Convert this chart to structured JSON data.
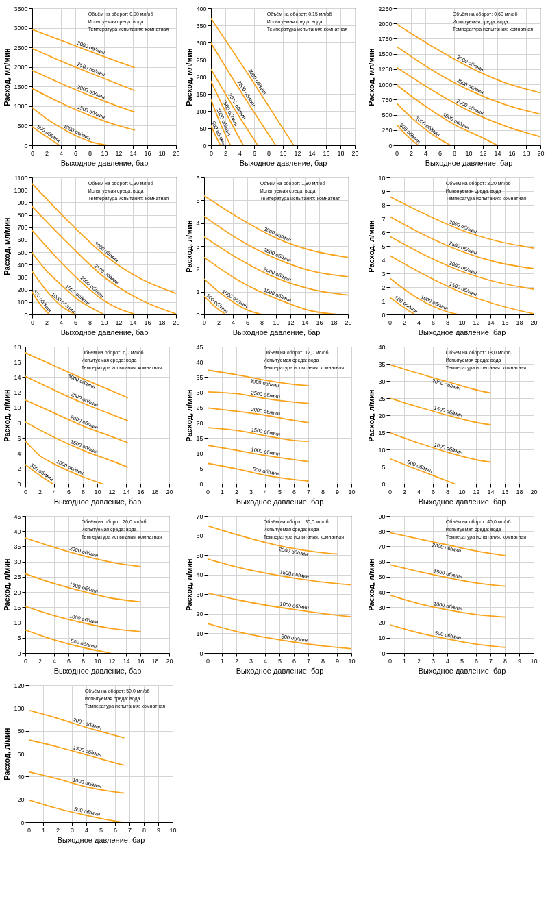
{
  "chart_data": [
    {
      "type": "line",
      "xlabel": "Выходное давление, бар",
      "ylabel": "Расход, мл/мин",
      "xlim": [
        0,
        20
      ],
      "xticks": [
        0,
        2,
        4,
        6,
        8,
        10,
        12,
        14,
        16,
        18,
        20
      ],
      "ylim": [
        0,
        3500
      ],
      "yticks": [
        0,
        500,
        1000,
        1500,
        2000,
        2500,
        3000,
        3500
      ],
      "grid": true,
      "annotations": [
        "Объём на оборот: 0,90 мл/об",
        "Испытуемая среда: вода",
        "Температура испытания: комнатная"
      ],
      "series": [
        {
          "name": "3000 об/мин",
          "color": "#f9a31b",
          "x": [
            0,
            4,
            8,
            12,
            14.2
          ],
          "values": [
            2960,
            2680,
            2400,
            2130,
            1990
          ]
        },
        {
          "name": "2500 об/мин",
          "color": "#f9a31b",
          "x": [
            0,
            4,
            8,
            12,
            14.2
          ],
          "values": [
            2470,
            2150,
            1850,
            1560,
            1400
          ]
        },
        {
          "name": "2000 об/мин",
          "color": "#f9a31b",
          "x": [
            0,
            4,
            8,
            12,
            14.2
          ],
          "values": [
            1910,
            1580,
            1270,
            990,
            850
          ]
        },
        {
          "name": "1500 об/мин",
          "color": "#f9a31b",
          "x": [
            0,
            4,
            8,
            12,
            14.2
          ],
          "values": [
            1450,
            1080,
            760,
            500,
            390
          ]
        },
        {
          "name": "1000 об/мин",
          "color": "#f9a31b",
          "x": [
            0,
            2,
            4,
            6,
            8,
            10.5
          ],
          "values": [
            960,
            680,
            450,
            250,
            100,
            0
          ]
        },
        {
          "name": "500 об/мин",
          "color": "#f9a31b",
          "x": [
            0,
            2,
            3.8
          ],
          "values": [
            470,
            220,
            0
          ]
        }
      ]
    },
    {
      "type": "line",
      "xlabel": "Выходное давление, бар",
      "ylabel": "Расход, мл/мин",
      "xlim": [
        0,
        20
      ],
      "xticks": [
        0,
        2,
        4,
        6,
        8,
        10,
        12,
        14,
        16,
        18,
        20
      ],
      "ylim": [
        0,
        400
      ],
      "yticks": [
        0,
        50,
        100,
        150,
        200,
        250,
        300,
        350,
        400
      ],
      "grid": true,
      "annotations": [
        "Объём на оборот: 0,15 мл/об",
        "Испытуемая среда: вода",
        "Температура испытания: комнатная"
      ],
      "series": [
        {
          "name": "3000 об/мин",
          "color": "#f9a31b",
          "x": [
            0,
            6,
            11.5
          ],
          "values": [
            370,
            180,
            0
          ]
        },
        {
          "name": "2500 об/мин",
          "color": "#f9a31b",
          "x": [
            0,
            4.5,
            9
          ],
          "values": [
            298,
            145,
            0
          ]
        },
        {
          "name": "2000 об/мин",
          "color": "#f9a31b",
          "x": [
            0,
            3.2,
            6.5
          ],
          "values": [
            222,
            108,
            0
          ]
        },
        {
          "name": "1500 об/мин",
          "color": "#f9a31b",
          "x": [
            0,
            2.2,
            4.5
          ],
          "values": [
            187,
            90,
            0
          ]
        },
        {
          "name": "1000 об/мин",
          "color": "#f9a31b",
          "x": [
            0,
            1.3,
            2.7
          ],
          "values": [
            133,
            64,
            0
          ]
        },
        {
          "name": "500 об/мин",
          "color": "#f9a31b",
          "x": [
            0,
            0.6,
            1.3
          ],
          "values": [
            57,
            30,
            0
          ]
        }
      ]
    },
    {
      "type": "line",
      "xlabel": "Выходное давление, бар",
      "ylabel": "Расход, мл/мин",
      "xlim": [
        0,
        20
      ],
      "xticks": [
        0,
        2,
        4,
        6,
        8,
        10,
        12,
        14,
        16,
        18,
        20
      ],
      "ylim": [
        0,
        2250
      ],
      "yticks": [
        0,
        250,
        500,
        750,
        1000,
        1250,
        1500,
        1750,
        2000,
        2250
      ],
      "grid": true,
      "annotations": [
        "Объём на оборот: 0,60 мл/об",
        "Испытуемая среда: вода",
        "Температура испытания: комнатная"
      ],
      "series": [
        {
          "name": "3000 об/мин",
          "color": "#f9a31b",
          "x": [
            0,
            5,
            10,
            15,
            20
          ],
          "values": [
            1990,
            1620,
            1290,
            1030,
            860
          ]
        },
        {
          "name": "2500 об/мин",
          "color": "#f9a31b",
          "x": [
            0,
            5,
            10,
            15,
            20
          ],
          "values": [
            1620,
            1230,
            910,
            670,
            510
          ]
        },
        {
          "name": "2000 об/мин",
          "color": "#f9a31b",
          "x": [
            0,
            5,
            10,
            15,
            20
          ],
          "values": [
            1280,
            900,
            570,
            320,
            140
          ]
        },
        {
          "name": "1500 об/мин",
          "color": "#f9a31b",
          "x": [
            0,
            4,
            8,
            12,
            14
          ],
          "values": [
            990,
            640,
            340,
            120,
            0
          ]
        },
        {
          "name": "1000 об/мин",
          "color": "#f9a31b",
          "x": [
            0,
            2,
            4,
            6,
            7.5
          ],
          "values": [
            690,
            460,
            260,
            100,
            0
          ]
        },
        {
          "name": "500 об/мин",
          "color": "#f9a31b",
          "x": [
            0,
            1.5,
            3
          ],
          "values": [
            340,
            150,
            0
          ]
        }
      ]
    },
    {
      "type": "line",
      "xlabel": "Выходное давление, бар",
      "ylabel": "Расход, мл/мин",
      "xlim": [
        0,
        20
      ],
      "xticks": [
        0,
        2,
        4,
        6,
        8,
        10,
        12,
        14,
        16,
        18,
        20
      ],
      "ylim": [
        0,
        1100
      ],
      "yticks": [
        0,
        100,
        200,
        300,
        400,
        500,
        600,
        700,
        800,
        900,
        1000,
        1100
      ],
      "grid": true,
      "annotations": [
        "Объём на оборот: 0,30 мл/об",
        "Испытуемая среда: вода",
        "Температура испытания: комнатная"
      ],
      "series": [
        {
          "name": "3000 об/мин",
          "color": "#f9a31b",
          "x": [
            0,
            5,
            10,
            15,
            20
          ],
          "values": [
            1050,
            750,
            480,
            290,
            170
          ]
        },
        {
          "name": "2500 об/мин",
          "color": "#f9a31b",
          "x": [
            0,
            5,
            10,
            15,
            20
          ],
          "values": [
            865,
            570,
            300,
            120,
            5
          ]
        },
        {
          "name": "2000 об/мин",
          "color": "#f9a31b",
          "x": [
            0,
            4,
            8,
            10,
            14.4
          ],
          "values": [
            675,
            420,
            200,
            110,
            0
          ]
        },
        {
          "name": "1500 об/мин",
          "color": "#f9a31b",
          "x": [
            0,
            2,
            4,
            6,
            8,
            10
          ],
          "values": [
            495,
            350,
            240,
            135,
            60,
            0
          ]
        },
        {
          "name": "1000 об/мин",
          "color": "#f9a31b",
          "x": [
            0,
            2,
            4,
            6
          ],
          "values": [
            345,
            190,
            70,
            0
          ]
        },
        {
          "name": "500 об/мин",
          "color": "#f9a31b",
          "x": [
            0,
            1,
            2.4
          ],
          "values": [
            180,
            90,
            0
          ]
        }
      ]
    },
    {
      "type": "line",
      "xlabel": "Выходное давление, бар",
      "ylabel": "Расход, л/мин",
      "xlim": [
        0,
        20
      ],
      "xticks": [
        0,
        2,
        4,
        6,
        8,
        10,
        12,
        14,
        16,
        18,
        20
      ],
      "ylim": [
        0,
        6
      ],
      "yticks": [
        0,
        1,
        2,
        3,
        4,
        5,
        6
      ],
      "grid": true,
      "annotations": [
        "Объём на оборот: 1,80 мл/об",
        "Испытуемая среда: вода",
        "Температура испытания: комнатная"
      ],
      "series": [
        {
          "name": "3000 об/мин",
          "color": "#f9a31b",
          "x": [
            0,
            5,
            10,
            15,
            20
          ],
          "values": [
            5.2,
            4.2,
            3.35,
            2.8,
            2.5
          ]
        },
        {
          "name": "2500 об/мин",
          "color": "#f9a31b",
          "x": [
            0,
            5,
            10,
            15,
            20
          ],
          "values": [
            4.3,
            3.25,
            2.45,
            1.9,
            1.65
          ]
        },
        {
          "name": "2000 об/мин",
          "color": "#f9a31b",
          "x": [
            0,
            5,
            10,
            15,
            20
          ],
          "values": [
            3.4,
            2.4,
            1.6,
            1.1,
            0.85
          ]
        },
        {
          "name": "1500 об/мин",
          "color": "#f9a31b",
          "x": [
            0,
            5,
            10,
            15,
            18.5
          ],
          "values": [
            2.5,
            1.45,
            0.7,
            0.15,
            0
          ]
        },
        {
          "name": "1000 об/мин",
          "color": "#f9a31b",
          "x": [
            0,
            2,
            4,
            6,
            8
          ],
          "values": [
            1.55,
            1.0,
            0.55,
            0.2,
            0
          ]
        },
        {
          "name": "500 об/мин",
          "color": "#f9a31b",
          "x": [
            0,
            1.5,
            3
          ],
          "values": [
            0.8,
            0.35,
            0
          ]
        }
      ]
    },
    {
      "type": "line",
      "xlabel": "Выходное давление, бар",
      "ylabel": "Расход, л/мин",
      "xlim": [
        0,
        20
      ],
      "xticks": [
        0,
        2,
        4,
        6,
        8,
        10,
        12,
        14,
        16,
        18,
        20
      ],
      "ylim": [
        0,
        10
      ],
      "yticks": [
        0,
        1,
        2,
        3,
        4,
        5,
        6,
        7,
        8,
        9,
        10
      ],
      "grid": true,
      "annotations": [
        "Объём на оборот: 3,20 мл/об",
        "Испытуемая среда: вода",
        "Температура испытания: комнатная"
      ],
      "series": [
        {
          "name": "3000 об/мин",
          "color": "#f9a31b",
          "x": [
            0,
            5,
            10,
            15,
            20
          ],
          "values": [
            8.6,
            7.3,
            6.15,
            5.35,
            4.85
          ]
        },
        {
          "name": "2500 об/мин",
          "color": "#f9a31b",
          "x": [
            0,
            5,
            10,
            15,
            20
          ],
          "values": [
            7.15,
            5.75,
            4.6,
            3.8,
            3.35
          ]
        },
        {
          "name": "2000 об/мин",
          "color": "#f9a31b",
          "x": [
            0,
            5,
            10,
            15,
            20
          ],
          "values": [
            5.7,
            4.3,
            3.15,
            2.35,
            1.85
          ]
        },
        {
          "name": "1500 об/мин",
          "color": "#f9a31b",
          "x": [
            0,
            5,
            10,
            15,
            20
          ],
          "values": [
            4.3,
            2.85,
            1.6,
            0.7,
            0.05
          ]
        },
        {
          "name": "1000 об/мин",
          "color": "#f9a31b",
          "x": [
            0,
            2,
            4,
            6,
            8,
            9.5
          ],
          "values": [
            2.65,
            1.85,
            1.15,
            0.6,
            0.2,
            0
          ]
        },
        {
          "name": "500 об/мин",
          "color": "#f9a31b",
          "x": [
            0,
            2,
            3.5
          ],
          "values": [
            1.25,
            0.5,
            0
          ]
        }
      ]
    },
    {
      "type": "line",
      "xlabel": "Выходное давление, бар",
      "ylabel": "Расход, л/мин",
      "xlim": [
        0,
        20
      ],
      "xticks": [
        0,
        2,
        4,
        6,
        8,
        10,
        12,
        14,
        16,
        18,
        20
      ],
      "ylim": [
        0,
        18
      ],
      "yticks": [
        0,
        2,
        4,
        6,
        8,
        10,
        12,
        14,
        16,
        18
      ],
      "grid": true,
      "annotations": [
        "Объём на оборот: 6,0 мл/об",
        "Испытуемая среда: вода",
        "Температура испытания: комнатная"
      ],
      "series": [
        {
          "name": "3000 об/мин",
          "color": "#f9a31b",
          "x": [
            0,
            4,
            8,
            12,
            14.2
          ],
          "values": [
            17.2,
            15.5,
            13.8,
            12.2,
            11.3
          ]
        },
        {
          "name": "2500 об/мин",
          "color": "#f9a31b",
          "x": [
            0,
            4,
            8,
            12,
            14.2
          ],
          "values": [
            14.1,
            12.3,
            10.6,
            9.1,
            8.3
          ]
        },
        {
          "name": "2000 об/мин",
          "color": "#f9a31b",
          "x": [
            0,
            4,
            8,
            12,
            14.2
          ],
          "values": [
            11.0,
            9.3,
            7.6,
            6.2,
            5.4
          ]
        },
        {
          "name": "1500 об/мин",
          "color": "#f9a31b",
          "x": [
            0,
            4,
            8,
            12,
            14.2
          ],
          "values": [
            8.1,
            6.1,
            4.4,
            3.0,
            2.2
          ]
        },
        {
          "name": "1000 об/мин",
          "color": "#f9a31b",
          "x": [
            0,
            2,
            4,
            6,
            8,
            10.7
          ],
          "values": [
            5.6,
            3.7,
            2.6,
            1.7,
            0.9,
            0
          ]
        },
        {
          "name": "500 об/мин",
          "color": "#f9a31b",
          "x": [
            0,
            2,
            3.8
          ],
          "values": [
            2.5,
            1.1,
            0
          ]
        }
      ]
    },
    {
      "type": "line",
      "xlabel": "Выходное давление, бар",
      "ylabel": "Расход, л/мин",
      "xlim": [
        0,
        10
      ],
      "xticks": [
        0,
        1,
        2,
        3,
        4,
        5,
        6,
        7,
        8,
        9,
        10
      ],
      "ylim": [
        0,
        45
      ],
      "yticks": [
        0,
        5,
        10,
        15,
        20,
        25,
        30,
        35,
        40,
        45
      ],
      "grid": true,
      "annotations": [
        "Объём на оборот: 12,0 мл/об",
        "Испытуемая среда: вода",
        "Температура испытания: комнатная"
      ],
      "series": [
        {
          "name": "3000 об/мин",
          "color": "#f9a31b",
          "x": [
            0,
            2,
            4,
            6,
            7
          ],
          "values": [
            37.3,
            35.8,
            34.0,
            32.6,
            32.2
          ]
        },
        {
          "name": "2500 об/мин",
          "color": "#f9a31b",
          "x": [
            0,
            2,
            4,
            6,
            7
          ],
          "values": [
            30.2,
            29.6,
            28.0,
            26.8,
            26.4
          ]
        },
        {
          "name": "2000 об/мин",
          "color": "#f9a31b",
          "x": [
            0,
            2,
            4,
            6,
            7
          ],
          "values": [
            24.9,
            23.8,
            22.5,
            20.8,
            20.1
          ]
        },
        {
          "name": "1500 об/мин",
          "color": "#f9a31b",
          "x": [
            0,
            2,
            4,
            6,
            7
          ],
          "values": [
            18.4,
            17.5,
            15.8,
            14.2,
            13.9
          ]
        },
        {
          "name": "1000 об/мин",
          "color": "#f9a31b",
          "x": [
            0,
            2,
            4,
            6,
            7
          ],
          "values": [
            12.6,
            11.0,
            9.3,
            7.9,
            7.3
          ]
        },
        {
          "name": "500 об/мин",
          "color": "#f9a31b",
          "x": [
            0,
            2,
            4,
            6,
            7
          ],
          "values": [
            6.7,
            4.9,
            2.8,
            1.4,
            0.9
          ]
        }
      ]
    },
    {
      "type": "line",
      "xlabel": "Выходное давление, бар",
      "ylabel": "Расход, л/мин",
      "xlim": [
        0,
        20
      ],
      "xticks": [
        0,
        2,
        4,
        6,
        8,
        10,
        12,
        14,
        16,
        18,
        20
      ],
      "ylim": [
        0,
        40
      ],
      "yticks": [
        0,
        5,
        10,
        15,
        20,
        25,
        30,
        35,
        40
      ],
      "grid": true,
      "annotations": [
        "Объём на оборот: 18,0 мл/об",
        "Испытуемая среда: вода",
        "Температура испытания: комнатная"
      ],
      "series": [
        {
          "name": "2000 об/мин",
          "color": "#f9a31b",
          "x": [
            0,
            4,
            8,
            12,
            14
          ],
          "values": [
            34.8,
            32.2,
            29.8,
            27.4,
            26.5
          ]
        },
        {
          "name": "1500 об/мин",
          "color": "#f9a31b",
          "x": [
            0,
            4,
            8,
            12,
            14
          ],
          "values": [
            25.0,
            22.4,
            20.0,
            17.9,
            17.2
          ]
        },
        {
          "name": "1000 об/мин",
          "color": "#f9a31b",
          "x": [
            0,
            4,
            8,
            12,
            14
          ],
          "values": [
            14.9,
            11.9,
            9.2,
            7.0,
            6.3
          ]
        },
        {
          "name": "500 об/мин",
          "color": "#f9a31b",
          "x": [
            0,
            4,
            8,
            9
          ],
          "values": [
            7.3,
            4.0,
            0.8,
            0
          ]
        }
      ]
    },
    {
      "type": "line",
      "xlabel": "Выходное давление, бар",
      "ylabel": "Расход, л/мин",
      "xlim": [
        0,
        20
      ],
      "xticks": [
        0,
        2,
        4,
        6,
        8,
        10,
        12,
        14,
        16,
        18,
        20
      ],
      "ylim": [
        0,
        45
      ],
      "yticks": [
        0,
        5,
        10,
        15,
        20,
        25,
        30,
        35,
        40,
        45
      ],
      "grid": true,
      "annotations": [
        "Объём на оборот: 20,0 мл/об",
        "Испытуемая среда: вода",
        "Температура испытания: комнатная"
      ],
      "series": [
        {
          "name": "2000 об/мин",
          "color": "#f9a31b",
          "x": [
            0,
            4,
            8,
            12,
            16
          ],
          "values": [
            37.8,
            34.7,
            32.0,
            29.8,
            28.4
          ]
        },
        {
          "name": "1500 об/мин",
          "color": "#f9a31b",
          "x": [
            0,
            4,
            8,
            12,
            16
          ],
          "values": [
            26.0,
            22.8,
            20.2,
            18.0,
            16.8
          ]
        },
        {
          "name": "1000 об/мин",
          "color": "#f9a31b",
          "x": [
            0,
            4,
            8,
            12,
            16
          ],
          "values": [
            15.3,
            12.3,
            9.9,
            8.0,
            7.0
          ]
        },
        {
          "name": "500 об/мин",
          "color": "#f9a31b",
          "x": [
            0,
            4,
            8,
            11.8
          ],
          "values": [
            7.5,
            4.3,
            1.8,
            0
          ]
        }
      ]
    },
    {
      "type": "line",
      "xlabel": "Выходное давление, бар",
      "ylabel": "Расход, л/мин",
      "xlim": [
        0,
        10
      ],
      "xticks": [
        0,
        1,
        2,
        3,
        4,
        5,
        6,
        7,
        8,
        9,
        10
      ],
      "ylim": [
        0,
        70
      ],
      "yticks": [
        0,
        10,
        20,
        30,
        40,
        50,
        60,
        70
      ],
      "grid": true,
      "annotations": [
        "Объём на оборот: 30,0 мл/об",
        "Испытуемая среда: вода",
        "Температура испытания: комнатная"
      ],
      "series": [
        {
          "name": "2000 об/мин",
          "color": "#f9a31b",
          "x": [
            0,
            2,
            4,
            6,
            8,
            9
          ],
          "values": [
            65,
            60.5,
            56.5,
            53.3,
            51.2,
            50.5
          ]
        },
        {
          "name": "1500 об/мин",
          "color": "#f9a31b",
          "x": [
            0,
            2,
            4,
            6,
            8,
            10
          ],
          "values": [
            48,
            44,
            40.8,
            38.3,
            36.2,
            34.8
          ]
        },
        {
          "name": "1000 об/мин",
          "color": "#f9a31b",
          "x": [
            0,
            2,
            4,
            6,
            8,
            10
          ],
          "values": [
            30.7,
            27.3,
            24.5,
            22.2,
            20.2,
            18.5
          ]
        },
        {
          "name": "500 об/мин",
          "color": "#f9a31b",
          "x": [
            0,
            2,
            4,
            6,
            8,
            10
          ],
          "values": [
            15,
            11,
            8,
            5.6,
            3.6,
            2.2
          ]
        }
      ]
    },
    {
      "type": "line",
      "xlabel": "Выходное давление, бар",
      "ylabel": "Расход, л/мин",
      "xlim": [
        0,
        10
      ],
      "xticks": [
        0,
        1,
        2,
        3,
        4,
        5,
        6,
        7,
        8,
        9,
        10
      ],
      "ylim": [
        0,
        90
      ],
      "yticks": [
        0,
        10,
        20,
        30,
        40,
        50,
        60,
        70,
        80,
        90
      ],
      "grid": true,
      "annotations": [
        "Объём на оборот: 40,0 мл/об",
        "Испытуемая среда: вода",
        "Температура испытания: комнатная"
      ],
      "series": [
        {
          "name": "2000 об/мин",
          "color": "#f9a31b",
          "x": [
            0,
            2,
            4,
            6,
            8
          ],
          "values": [
            79,
            75,
            71,
            67,
            64
          ]
        },
        {
          "name": "1500 об/мин",
          "color": "#f9a31b",
          "x": [
            0,
            2,
            4,
            6,
            8
          ],
          "values": [
            58,
            53.5,
            49.5,
            46,
            43.8
          ]
        },
        {
          "name": "1000 об/мин",
          "color": "#f9a31b",
          "x": [
            0,
            2,
            4,
            6,
            8
          ],
          "values": [
            38,
            32.5,
            28.3,
            25.3,
            23.6
          ]
        },
        {
          "name": "500 об/мин",
          "color": "#f9a31b",
          "x": [
            0,
            2,
            4,
            6,
            8
          ],
          "values": [
            18.5,
            13.2,
            9.2,
            5.8,
            3.7
          ]
        }
      ]
    },
    {
      "type": "line",
      "xlabel": "Выходное давление, бар",
      "ylabel": "Расход, л/мин",
      "xlim": [
        0,
        10
      ],
      "xticks": [
        0,
        1,
        2,
        3,
        4,
        5,
        6,
        7,
        8,
        9,
        10
      ],
      "ylim": [
        0,
        120
      ],
      "yticks": [
        0,
        20,
        40,
        60,
        80,
        100,
        120
      ],
      "grid": true,
      "annotations": [
        "Объём на оборот: 50,0 мл/об",
        "Испытуемая среда: вода",
        "Температура испытания: комнатная"
      ],
      "series": [
        {
          "name": "2000 об/мин",
          "color": "#f9a31b",
          "x": [
            0,
            2,
            4,
            6,
            6.6
          ],
          "values": [
            98,
            91,
            83,
            76,
            74
          ]
        },
        {
          "name": "1500 об/мин",
          "color": "#f9a31b",
          "x": [
            0,
            2,
            4,
            6,
            6.6
          ],
          "values": [
            72,
            66,
            59,
            52,
            50
          ]
        },
        {
          "name": "1000 об/мин",
          "color": "#f9a31b",
          "x": [
            0,
            2,
            4,
            6,
            6.6
          ],
          "values": [
            44,
            38,
            31,
            26.5,
            25.5
          ]
        },
        {
          "name": "500 об/мин",
          "color": "#f9a31b",
          "x": [
            0,
            2,
            4,
            6,
            6.6
          ],
          "values": [
            19.5,
            12,
            6,
            1,
            0
          ]
        }
      ]
    }
  ]
}
